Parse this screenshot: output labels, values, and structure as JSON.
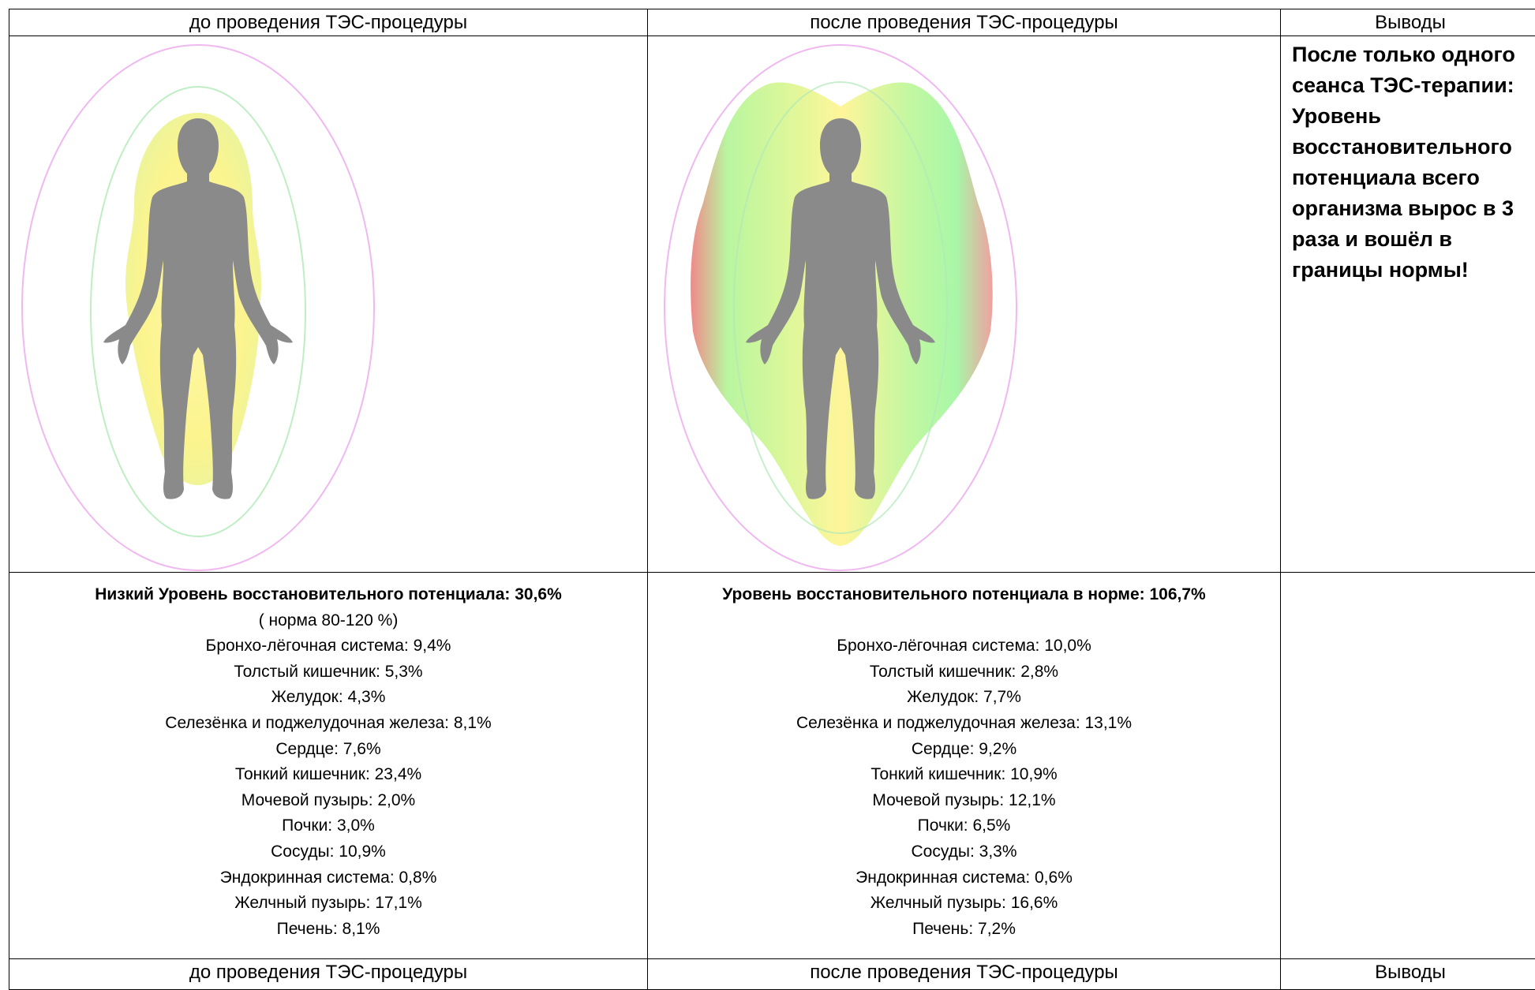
{
  "header": [
    "до проведения ТЭС-процедуры",
    "после проведения ТЭС-процедуры",
    "Выводы"
  ],
  "conclusion": "После только одного сеанса ТЭС-терапии: Уровень восстановительного потенциала всего организма вырос в  3 раза и вошёл в границы нормы!",
  "before": {
    "title": "Низкий Уровень восстановительного потенциала: 30,6%",
    "note": "( норма 80-120 %)",
    "items": [
      "Бронхо-лёгочная система: 9,4%",
      "Толстый кишечник: 5,3%",
      "Желудок: 4,3%",
      "Селезёнка и поджелудочная железа: 8,1%",
      "Сердце: 7,6%",
      "Тонкий кишечник: 23,4%",
      "Мочевой пузырь: 2,0%",
      "Почки: 3,0%",
      "Сосуды: 10,9%",
      "Эндокринная система: 0,8%",
      "Желчный пузырь: 17,1%",
      "Печень: 8,1%"
    ]
  },
  "after": {
    "title": "Уровень восстановительного потенциала в норме: 106,7%",
    "items": [
      "Бронхо-лёгочная система: 10,0%",
      "Толстый кишечник: 2,8%",
      "Желудок: 7,7%",
      "Селезёнка и поджелудочная железа: 13,1%",
      "Сердце: 9,2%",
      "Тонкий кишечник: 10,9%",
      "Мочевой пузырь: 12,1%",
      "Почки: 6,5%",
      "Сосуды: 3,3%",
      "Эндокринная система: 0,6%",
      "Желчный пузырь: 16,6%",
      "Печень: 7,2%"
    ]
  },
  "footer": [
    "до проведения ТЭС-процедуры",
    "после проведения ТЭС-процедуры",
    "Выводы"
  ]
}
